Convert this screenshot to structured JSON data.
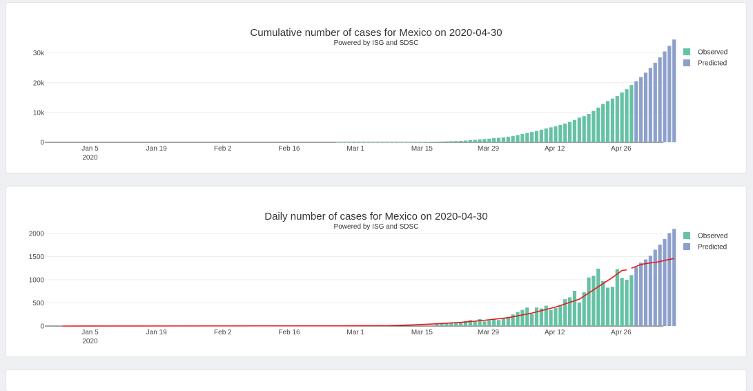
{
  "colors": {
    "observed": "#66c2a5",
    "predicted": "#8da0cb",
    "trend": "#e31a1c"
  },
  "chart_data": [
    {
      "type": "bar",
      "title": "Cumulative number of cases for Mexico on 2020-04-30",
      "subtitle": "Powered by ISG and SDSC",
      "x_start": "2020-01-01",
      "x_ticks": [
        "Jan 5",
        "Jan 19",
        "Feb 2",
        "Feb 16",
        "Mar 1",
        "Mar 15",
        "Mar 29",
        "Apr 12",
        "Apr 26"
      ],
      "x_tick_dates": [
        "2020-01-05",
        "2020-01-19",
        "2020-02-02",
        "2020-02-16",
        "2020-03-01",
        "2020-03-15",
        "2020-03-29",
        "2020-04-12",
        "2020-04-26"
      ],
      "x_year_label": "2020",
      "y_ticks": [
        "0",
        "10k",
        "20k",
        "30k"
      ],
      "y_tick_values": [
        0,
        10000,
        20000,
        30000
      ],
      "ylim": [
        0,
        32000
      ],
      "legend": [
        "Observed",
        "Predicted"
      ],
      "legend_position": "top-right",
      "series": [
        {
          "name": "Observed",
          "x": [
            "2020-02-28",
            "2020-02-29",
            "2020-03-01",
            "2020-03-02",
            "2020-03-03",
            "2020-03-04",
            "2020-03-05",
            "2020-03-06",
            "2020-03-07",
            "2020-03-08",
            "2020-03-09",
            "2020-03-10",
            "2020-03-11",
            "2020-03-12",
            "2020-03-13",
            "2020-03-14",
            "2020-03-15",
            "2020-03-16",
            "2020-03-17",
            "2020-03-18",
            "2020-03-19",
            "2020-03-20",
            "2020-03-21",
            "2020-03-22",
            "2020-03-23",
            "2020-03-24",
            "2020-03-25",
            "2020-03-26",
            "2020-03-27",
            "2020-03-28",
            "2020-03-29",
            "2020-03-30",
            "2020-03-31",
            "2020-04-01",
            "2020-04-02",
            "2020-04-03",
            "2020-04-04",
            "2020-04-05",
            "2020-04-06",
            "2020-04-07",
            "2020-04-08",
            "2020-04-09",
            "2020-04-10",
            "2020-04-11",
            "2020-04-12",
            "2020-04-13",
            "2020-04-14",
            "2020-04-15",
            "2020-04-16",
            "2020-04-17",
            "2020-04-18",
            "2020-04-19",
            "2020-04-20",
            "2020-04-21",
            "2020-04-22",
            "2020-04-23",
            "2020-04-24",
            "2020-04-25",
            "2020-04-26",
            "2020-04-27",
            "2020-04-28",
            "2020-04-29",
            "2020-04-30"
          ],
          "values": [
            4,
            4,
            5,
            5,
            5,
            5,
            5,
            6,
            7,
            7,
            7,
            8,
            12,
            16,
            26,
            41,
            53,
            82,
            93,
            118,
            164,
            203,
            251,
            316,
            367,
            405,
            475,
            585,
            717,
            848,
            993,
            1094,
            1215,
            1378,
            1510,
            1688,
            1890,
            2143,
            2439,
            2785,
            3181,
            3441,
            3844,
            4219,
            4661,
            5014,
            5399,
            5847,
            6297,
            6875,
            7497,
            8261,
            8772,
            9501,
            10544,
            11633,
            12872,
            13842,
            14677,
            15529,
            16752,
            17799,
            19224
          ]
        },
        {
          "name": "Predicted",
          "x": [
            "2020-05-01",
            "2020-05-02",
            "2020-05-03",
            "2020-05-04",
            "2020-05-05",
            "2020-05-06",
            "2020-05-07",
            "2020-05-08",
            "2020-05-09"
          ],
          "values": [
            20500,
            21900,
            23400,
            25000,
            26700,
            28500,
            30500,
            32400,
            34500
          ]
        }
      ]
    },
    {
      "type": "bar",
      "title": "Daily number of cases for Mexico on 2020-04-30",
      "subtitle": "Powered by ISG and SDSC",
      "x_start": "2020-01-01",
      "x_ticks": [
        "Jan 5",
        "Jan 19",
        "Feb 2",
        "Feb 16",
        "Mar 1",
        "Mar 15",
        "Mar 29",
        "Apr 12",
        "Apr 26"
      ],
      "x_tick_dates": [
        "2020-01-05",
        "2020-01-19",
        "2020-02-02",
        "2020-02-16",
        "2020-03-01",
        "2020-03-15",
        "2020-03-29",
        "2020-04-12",
        "2020-04-26"
      ],
      "x_year_label": "2020",
      "y_ticks": [
        "0",
        "500",
        "1000",
        "1500",
        "2000"
      ],
      "y_tick_values": [
        0,
        500,
        1000,
        1500,
        2000
      ],
      "ylim": [
        0,
        2060
      ],
      "legend": [
        "Observed",
        "Predicted"
      ],
      "legend_position": "top-right",
      "series": [
        {
          "name": "Observed",
          "x": [
            "2020-03-20",
            "2020-03-21",
            "2020-03-22",
            "2020-03-23",
            "2020-03-24",
            "2020-03-25",
            "2020-03-26",
            "2020-03-27",
            "2020-03-28",
            "2020-03-29",
            "2020-03-30",
            "2020-03-31",
            "2020-04-01",
            "2020-04-02",
            "2020-04-03",
            "2020-04-04",
            "2020-04-05",
            "2020-04-06",
            "2020-04-07",
            "2020-04-08",
            "2020-04-09",
            "2020-04-10",
            "2020-04-11",
            "2020-04-12",
            "2020-04-13",
            "2020-04-14",
            "2020-04-15",
            "2020-04-16",
            "2020-04-17",
            "2020-04-18",
            "2020-04-19",
            "2020-04-20",
            "2020-04-21",
            "2020-04-22",
            "2020-04-23",
            "2020-04-24",
            "2020-04-25",
            "2020-04-26",
            "2020-04-27",
            "2020-04-28",
            "2020-04-29",
            "2020-04-30"
          ],
          "values": [
            40,
            50,
            60,
            70,
            80,
            90,
            110,
            130,
            110,
            150,
            100,
            120,
            160,
            130,
            180,
            200,
            250,
            300,
            350,
            400,
            260,
            400,
            380,
            440,
            350,
            390,
            450,
            580,
            620,
            760,
            510,
            730,
            1050,
            1090,
            1240,
            970,
            830,
            850,
            1230,
            1040,
            1000,
            1100
          ]
        },
        {
          "name": "Predicted",
          "x": [
            "2020-05-01",
            "2020-05-02",
            "2020-05-03",
            "2020-05-04",
            "2020-05-05",
            "2020-05-06",
            "2020-05-07",
            "2020-05-08",
            "2020-05-09"
          ],
          "values": [
            1270,
            1370,
            1440,
            1520,
            1650,
            1760,
            1880,
            2010,
            2100
          ]
        }
      ],
      "trend_lines": [
        {
          "x": [
            "2020-01-01",
            "2020-02-29",
            "2020-03-10",
            "2020-03-15",
            "2020-03-20",
            "2020-03-25",
            "2020-03-30",
            "2020-04-04",
            "2020-04-09",
            "2020-04-14",
            "2020-04-19",
            "2020-04-23",
            "2020-04-26",
            "2020-04-28",
            "2020-04-29"
          ],
          "values": [
            0,
            5,
            10,
            25,
            50,
            80,
            125,
            180,
            280,
            410,
            580,
            850,
            1050,
            1200,
            1215
          ]
        },
        {
          "x": [
            "2020-04-30",
            "2020-05-01",
            "2020-05-02",
            "2020-05-03",
            "2020-05-04",
            "2020-05-05",
            "2020-05-06",
            "2020-05-07",
            "2020-05-08",
            "2020-05-09"
          ],
          "values": [
            1250,
            1290,
            1330,
            1350,
            1365,
            1375,
            1395,
            1420,
            1440,
            1460
          ]
        }
      ]
    }
  ]
}
